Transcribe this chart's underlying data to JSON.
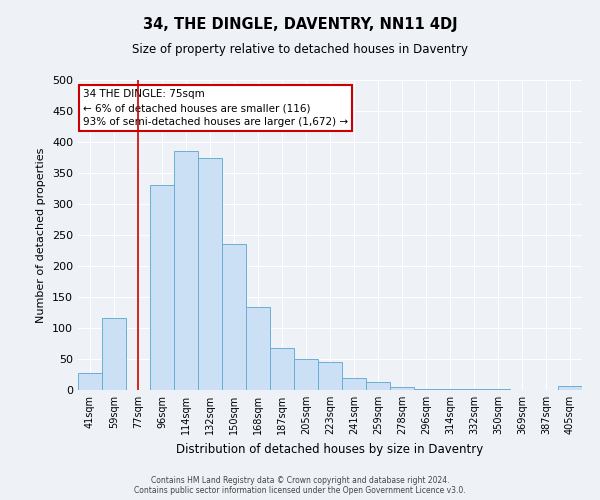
{
  "title": "34, THE DINGLE, DAVENTRY, NN11 4DJ",
  "subtitle": "Size of property relative to detached houses in Daventry",
  "xlabel": "Distribution of detached houses by size in Daventry",
  "ylabel": "Number of detached properties",
  "categories": [
    "41sqm",
    "59sqm",
    "77sqm",
    "96sqm",
    "114sqm",
    "132sqm",
    "150sqm",
    "168sqm",
    "187sqm",
    "205sqm",
    "223sqm",
    "241sqm",
    "259sqm",
    "278sqm",
    "296sqm",
    "314sqm",
    "332sqm",
    "350sqm",
    "369sqm",
    "387sqm",
    "405sqm"
  ],
  "values": [
    28,
    116,
    0,
    331,
    385,
    374,
    236,
    134,
    67,
    50,
    45,
    19,
    13,
    5,
    2,
    1,
    1,
    1,
    0,
    0,
    6
  ],
  "bar_color": "#cce0f5",
  "bar_edge_color": "#6baed6",
  "red_line_x": 2,
  "annotation_text": "34 THE DINGLE: 75sqm\n← 6% of detached houses are smaller (116)\n93% of semi-detached houses are larger (1,672) →",
  "annotation_box_color": "#ffffff",
  "annotation_box_edge_color": "#cc0000",
  "ylim": [
    0,
    500
  ],
  "yticks": [
    0,
    50,
    100,
    150,
    200,
    250,
    300,
    350,
    400,
    450,
    500
  ],
  "background_color": "#eef2f7",
  "grid_color": "#ffffff",
  "footer_line1": "Contains HM Land Registry data © Crown copyright and database right 2024.",
  "footer_line2": "Contains public sector information licensed under the Open Government Licence v3.0."
}
